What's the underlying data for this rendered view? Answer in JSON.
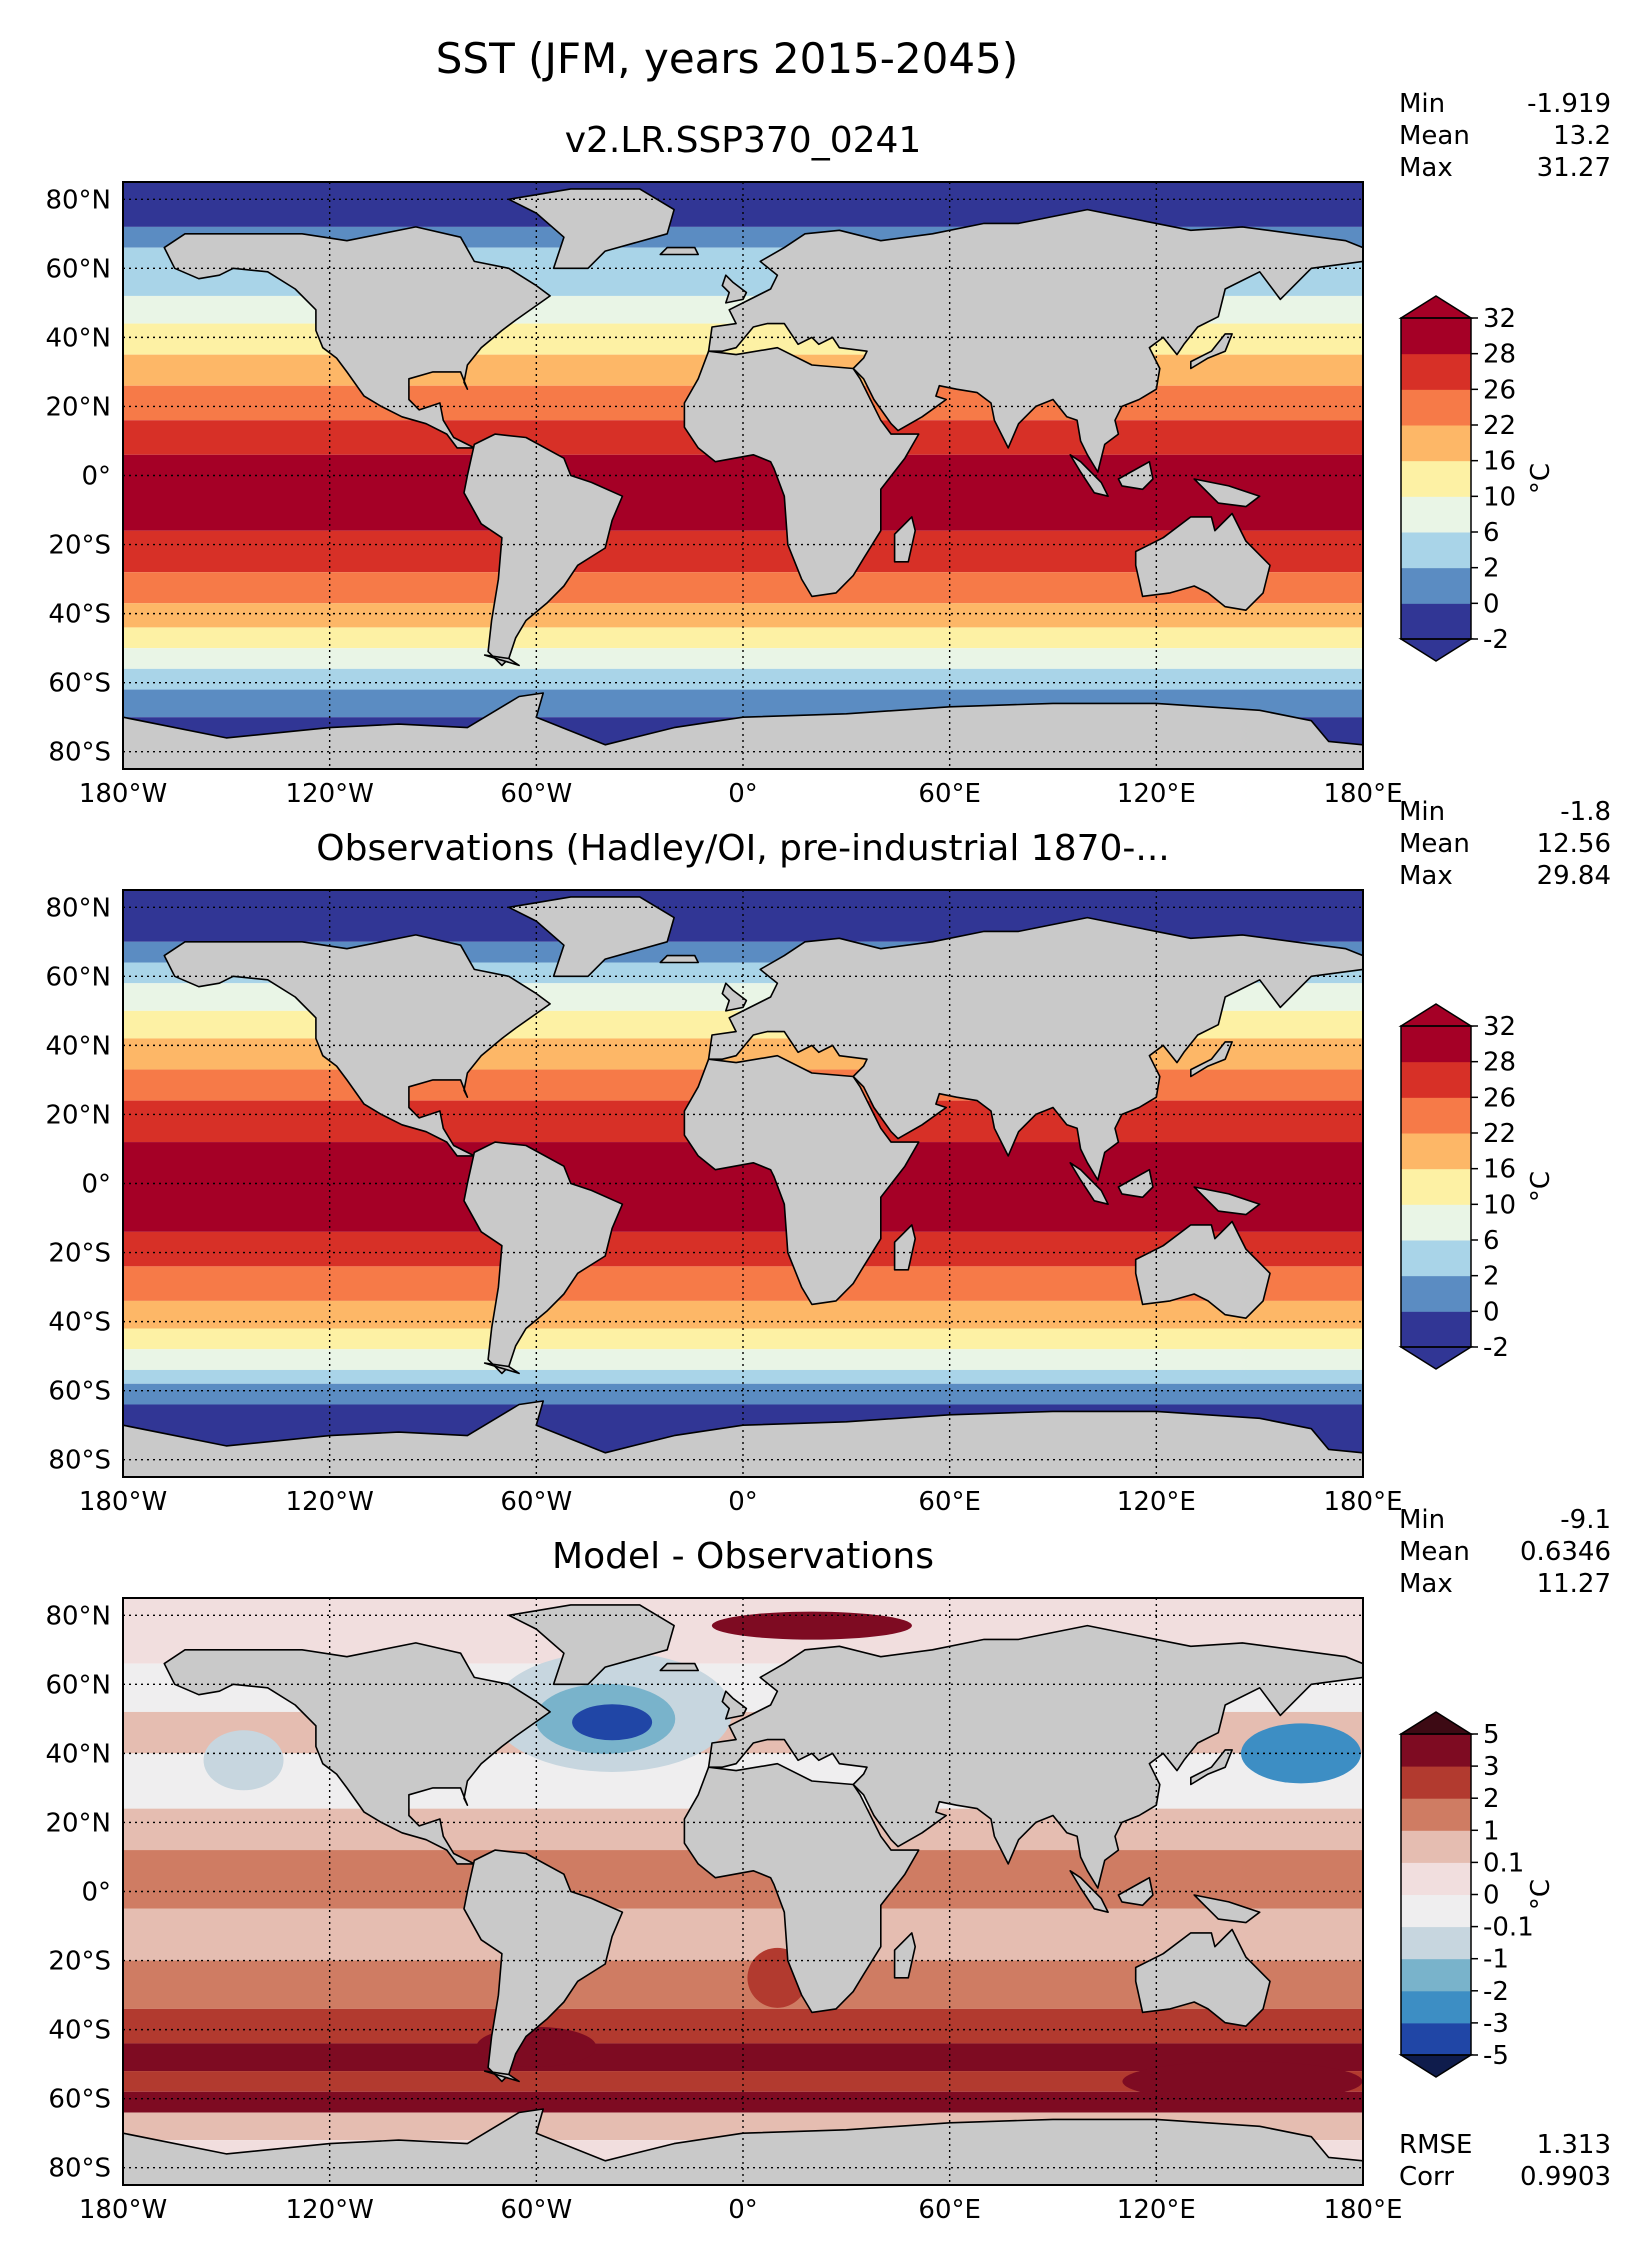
{
  "figure": {
    "title": "SST (JFM, years 2015-2045)"
  },
  "panels": [
    {
      "id": "model",
      "title": "v2.LR.SSP370_0241",
      "stats": [
        {
          "label": "Min",
          "value": "-1.919"
        },
        {
          "label": "Mean",
          "value": "13.2"
        },
        {
          "label": "Max",
          "value": "31.27"
        }
      ],
      "colorbar": {
        "levels": [
          "-2",
          "0",
          "2",
          "6",
          "10",
          "16",
          "22",
          "26",
          "28",
          "32"
        ],
        "colors": [
          "#313695",
          "#5b8cc2",
          "#a9d4e8",
          "#e9f5e6",
          "#fdf1a4",
          "#fdb767",
          "#f67a48",
          "#d73027",
          "#a50026"
        ],
        "extend_low": "#313695",
        "extend_high": "#a50026",
        "unit": "°C"
      },
      "bottom_stats": []
    },
    {
      "id": "obs",
      "title": "Observations (Hadley/OI, pre-industrial 1870-...",
      "stats": [
        {
          "label": "Min",
          "value": "-1.8"
        },
        {
          "label": "Mean",
          "value": "12.56"
        },
        {
          "label": "Max",
          "value": "29.84"
        }
      ],
      "colorbar": {
        "levels": [
          "-2",
          "0",
          "2",
          "6",
          "10",
          "16",
          "22",
          "26",
          "28",
          "32"
        ],
        "colors": [
          "#313695",
          "#5b8cc2",
          "#a9d4e8",
          "#e9f5e6",
          "#fdf1a4",
          "#fdb767",
          "#f67a48",
          "#d73027",
          "#a50026"
        ],
        "extend_low": "#313695",
        "extend_high": "#a50026",
        "unit": "°C"
      },
      "bottom_stats": []
    },
    {
      "id": "diff",
      "title": "Model - Observations",
      "stats": [
        {
          "label": "Min",
          "value": "-9.1"
        },
        {
          "label": "Mean",
          "value": "0.6346"
        },
        {
          "label": "Max",
          "value": "11.27"
        }
      ],
      "colorbar": {
        "levels": [
          "-5",
          "-3",
          "-2",
          "-1",
          "-0.1",
          "0",
          "0.1",
          "1",
          "2",
          "3",
          "5"
        ],
        "colors": [
          "#2046a6",
          "#3d8ec4",
          "#79b3cb",
          "#c7d6df",
          "#efeeef",
          "#f1dede",
          "#e5bdb1",
          "#cf7c63",
          "#b23a2f",
          "#7e0b22"
        ],
        "extend_low": "#0f1c4c",
        "extend_high": "#3d0a14",
        "unit": "°C"
      },
      "bottom_stats": [
        {
          "label": "RMSE",
          "value": "1.313"
        },
        {
          "label": "Corr",
          "value": "0.9903"
        }
      ]
    }
  ],
  "axes": {
    "lon_ticks": [
      "180°W",
      "120°W",
      "60°W",
      "0°",
      "60°E",
      "120°E",
      "180°E"
    ],
    "lat_ticks": [
      "80°N",
      "60°N",
      "40°N",
      "20°N",
      "0°",
      "20°S",
      "40°S",
      "60°S",
      "80°S"
    ]
  },
  "colors": {
    "land": "#c9c9c9",
    "coast": "#000000",
    "grid": "#000000"
  }
}
